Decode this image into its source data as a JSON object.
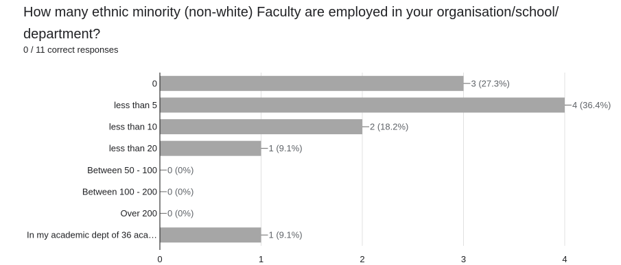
{
  "question": {
    "title": "How many ethnic minority (non-white) Faculty are employed  in your organisation/school/ department?",
    "summary": "0 / 11 correct responses"
  },
  "colors": {
    "bar": "#a6a6a6",
    "grid": "#e0e0e0",
    "axis": "#333333",
    "leader": "#666666"
  },
  "chart_data": {
    "type": "bar",
    "orientation": "horizontal",
    "categories": [
      "0",
      "less than 5",
      "less than 10",
      "less than 20",
      "Between 50 - 100",
      "Between 100 - 200",
      "Over 200",
      "In my academic dept of 36 aca…"
    ],
    "values": [
      3,
      4,
      2,
      1,
      0,
      0,
      0,
      1
    ],
    "value_labels": [
      "3 (27.3%)",
      "4 (36.4%)",
      "2 (18.2%)",
      "1 (9.1%)",
      "0 (0%)",
      "0 (0%)",
      "0 (0%)",
      "1 (9.1%)"
    ],
    "xlim": [
      0,
      4
    ],
    "xticks": [
      "0",
      "1",
      "2",
      "3",
      "4"
    ],
    "grid": true
  }
}
